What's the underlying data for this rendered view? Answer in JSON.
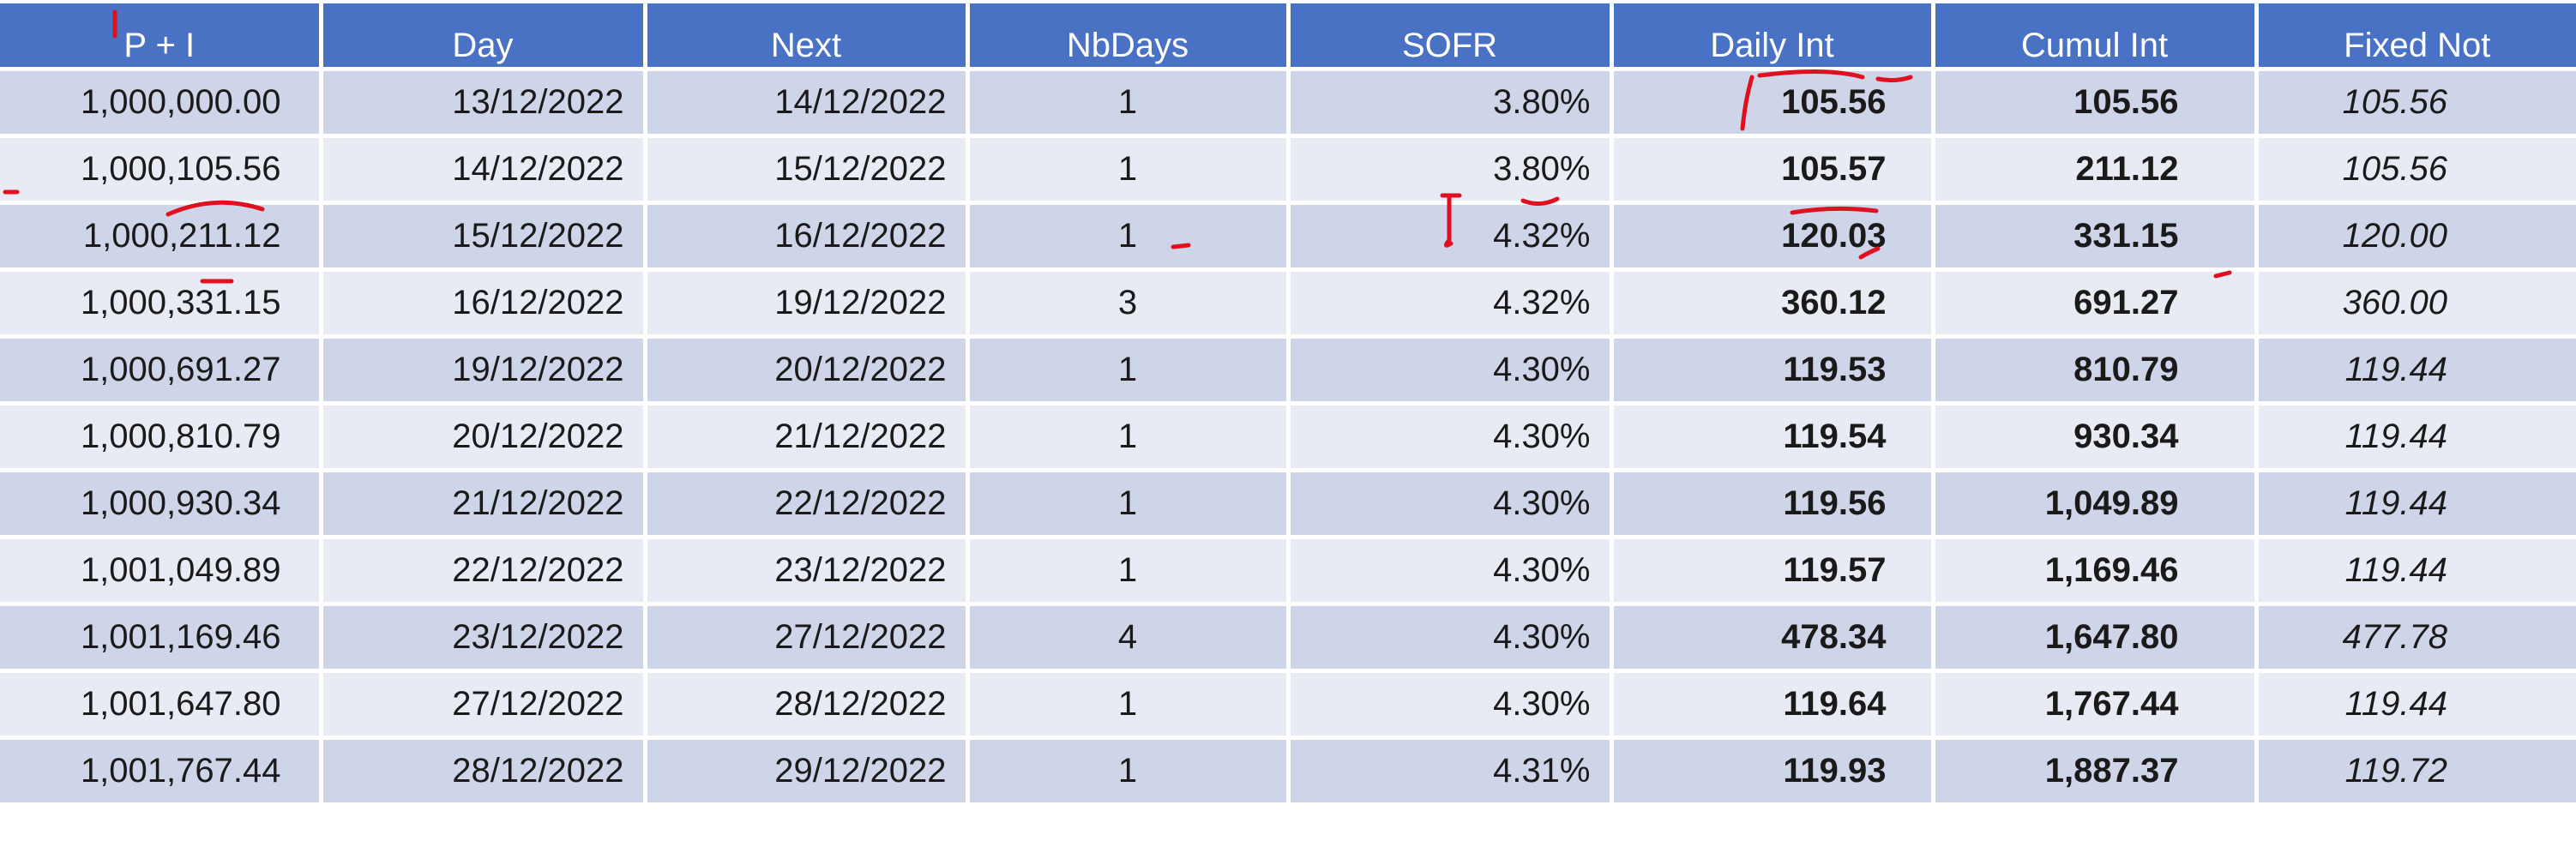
{
  "table": {
    "headers": [
      "P + I",
      "Day",
      "Next",
      "NbDays",
      "SOFR",
      "Daily Int",
      "Cumul Int",
      "Fixed Not"
    ],
    "rows": [
      [
        "1,000,000.00",
        "13/12/2022",
        "14/12/2022",
        "1",
        "3.80%",
        "105.56",
        "105.56",
        "105.56"
      ],
      [
        "1,000,105.56",
        "14/12/2022",
        "15/12/2022",
        "1",
        "3.80%",
        "105.57",
        "211.12",
        "105.56"
      ],
      [
        "1,000,211.12",
        "15/12/2022",
        "16/12/2022",
        "1",
        "4.32%",
        "120.03",
        "331.15",
        "120.00"
      ],
      [
        "1,000,331.15",
        "16/12/2022",
        "19/12/2022",
        "3",
        "4.32%",
        "360.12",
        "691.27",
        "360.00"
      ],
      [
        "1,000,691.27",
        "19/12/2022",
        "20/12/2022",
        "1",
        "4.30%",
        "119.53",
        "810.79",
        "119.44"
      ],
      [
        "1,000,810.79",
        "20/12/2022",
        "21/12/2022",
        "1",
        "4.30%",
        "119.54",
        "930.34",
        "119.44"
      ],
      [
        "1,000,930.34",
        "21/12/2022",
        "22/12/2022",
        "1",
        "4.30%",
        "119.56",
        "1,049.89",
        "119.44"
      ],
      [
        "1,001,049.89",
        "22/12/2022",
        "23/12/2022",
        "1",
        "4.30%",
        "119.57",
        "1,169.46",
        "119.44"
      ],
      [
        "1,001,169.46",
        "23/12/2022",
        "27/12/2022",
        "4",
        "4.30%",
        "478.34",
        "1,647.80",
        "477.78"
      ],
      [
        "1,001,647.80",
        "27/12/2022",
        "28/12/2022",
        "1",
        "4.30%",
        "119.64",
        "1,767.44",
        "119.44"
      ],
      [
        "1,001,767.44",
        "28/12/2022",
        "29/12/2022",
        "1",
        "4.31%",
        "119.93",
        "1,887.37",
        "119.72"
      ]
    ]
  },
  "colors": {
    "header_bg": "#4a72c4",
    "row_dark": "#cfd5e8",
    "row_light": "#e9ebf4",
    "annotation": "#e01020"
  }
}
